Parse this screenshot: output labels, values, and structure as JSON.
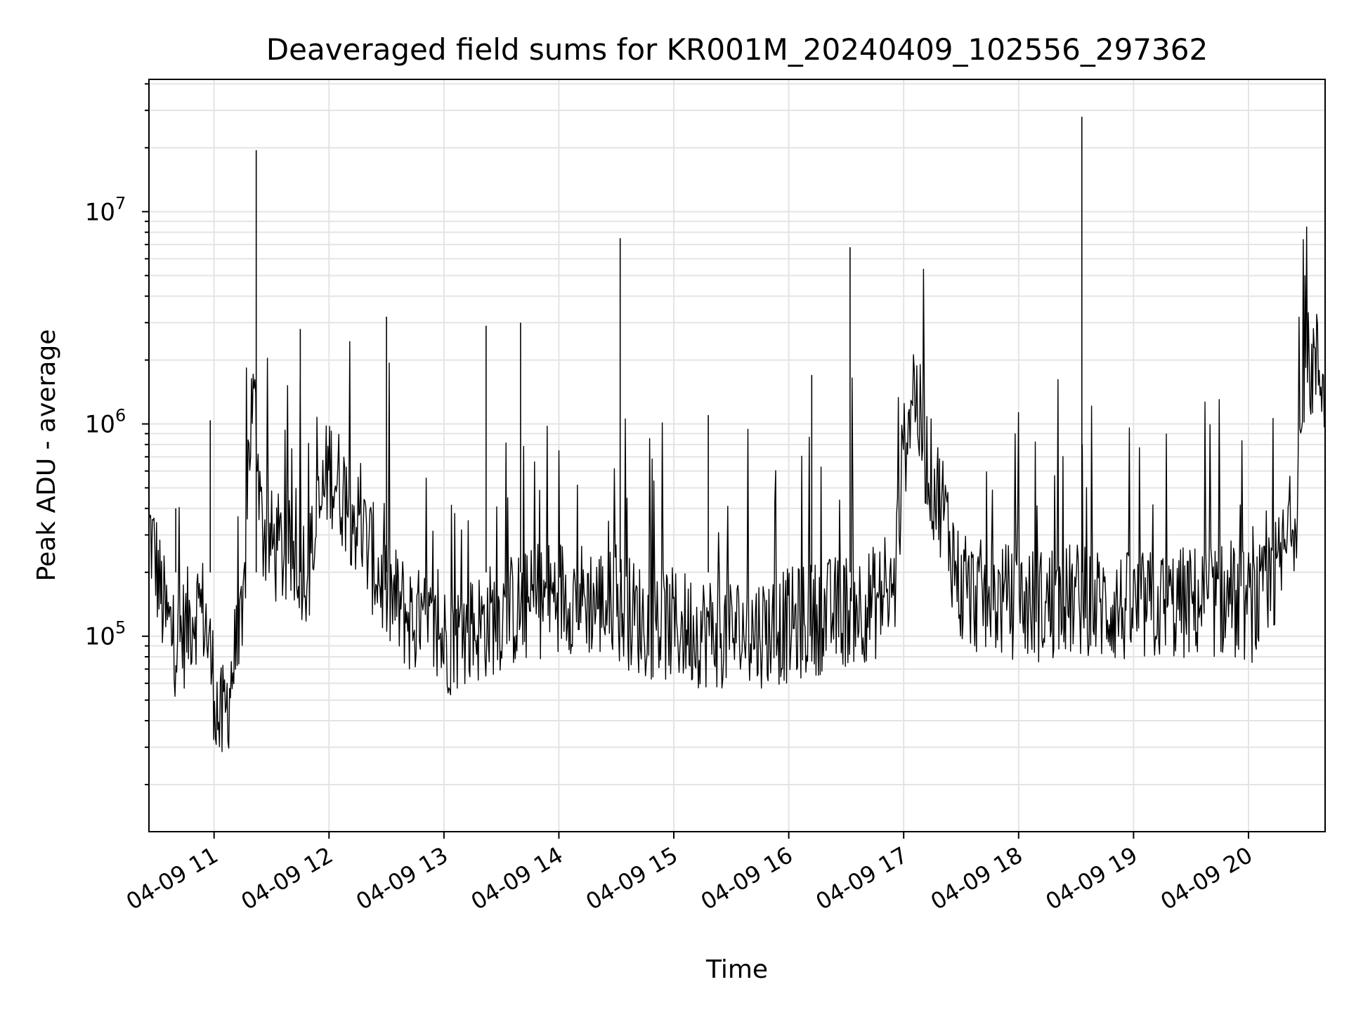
{
  "chart_data": {
    "type": "line",
    "title": "Deaveraged field sums for KR001M_20240409_102556_297362",
    "xlabel": "Time",
    "ylabel": "Peak ADU - average",
    "yscale": "log",
    "grid": true,
    "legend": "none",
    "line_color": "#000000",
    "xlim": [
      "2024-04-09 10:26",
      "2024-04-09 20:40"
    ],
    "ylim": [
      12000,
      42000000
    ],
    "x_ticks": [
      "04-09 11",
      "04-09 12",
      "04-09 13",
      "04-09 14",
      "04-09 15",
      "04-09 16",
      "04-09 17",
      "04-09 18",
      "04-09 19",
      "04-09 20"
    ],
    "y_ticks": [
      {
        "value": 100000,
        "base": "10",
        "exp": "5"
      },
      {
        "value": 1000000,
        "base": "10",
        "exp": "6"
      },
      {
        "value": 10000000,
        "base": "10",
        "exp": "7"
      }
    ],
    "series": [
      {
        "x": [
          "2024-04-09 10:26",
          "2024-04-09 10:28",
          "2024-04-09 10:30",
          "2024-04-09 10:32",
          "2024-04-09 10:35",
          "2024-04-09 10:40",
          "2024-04-09 10:45",
          "2024-04-09 10:50",
          "2024-04-09 10:55",
          "2024-04-09 11:00",
          "2024-04-09 11:03",
          "2024-04-09 11:06",
          "2024-04-09 11:10",
          "2024-04-09 11:15",
          "2024-04-09 11:18",
          "2024-04-09 11:20",
          "2024-04-09 11:22",
          "2024-04-09 11:23",
          "2024-04-09 11:25",
          "2024-04-09 11:30",
          "2024-04-09 11:40",
          "2024-04-09 11:50",
          "2024-04-09 12:00",
          "2024-04-09 12:10",
          "2024-04-09 12:20",
          "2024-04-09 12:30",
          "2024-04-09 12:40",
          "2024-04-09 12:50",
          "2024-04-09 13:00",
          "2024-04-09 13:15",
          "2024-04-09 13:30",
          "2024-04-09 13:45",
          "2024-04-09 14:00",
          "2024-04-09 14:15",
          "2024-04-09 14:30",
          "2024-04-09 14:45",
          "2024-04-09 15:00",
          "2024-04-09 15:15",
          "2024-04-09 15:30",
          "2024-04-09 15:45",
          "2024-04-09 16:00",
          "2024-04-09 16:15",
          "2024-04-09 16:30",
          "2024-04-09 16:45",
          "2024-04-09 16:55",
          "2024-04-09 17:00",
          "2024-04-09 17:05",
          "2024-04-09 17:10",
          "2024-04-09 17:15",
          "2024-04-09 17:20",
          "2024-04-09 17:30",
          "2024-04-09 17:45",
          "2024-04-09 18:00",
          "2024-04-09 18:15",
          "2024-04-09 18:30",
          "2024-04-09 18:45",
          "2024-04-09 19:00",
          "2024-04-09 19:15",
          "2024-04-09 19:30",
          "2024-04-09 19:45",
          "2024-04-09 20:00",
          "2024-04-09 20:10",
          "2024-04-09 20:20",
          "2024-04-09 20:25",
          "2024-04-09 20:30",
          "2024-04-09 20:35",
          "2024-04-09 20:40"
        ],
        "y": [
          300000,
          250000,
          200000,
          150000,
          110000,
          90000,
          100000,
          130000,
          120000,
          55000,
          35000,
          40000,
          70000,
          90000,
          700000,
          1200000,
          900000,
          700000,
          300000,
          250000,
          220000,
          200000,
          600000,
          400000,
          250000,
          150000,
          120000,
          100000,
          90000,
          100000,
          120000,
          130000,
          150000,
          140000,
          130000,
          110000,
          105000,
          100000,
          98000,
          100000,
          105000,
          115000,
          125000,
          135000,
          150000,
          700000,
          1500000,
          800000,
          500000,
          400000,
          150000,
          140000,
          135000,
          130000,
          140000,
          130000,
          125000,
          130000,
          135000,
          140000,
          130000,
          140000,
          250000,
          400000,
          1700000,
          1800000,
          1500000
        ]
      }
    ],
    "spikes": [
      {
        "x": "2024-04-09 10:40",
        "y": 400000
      },
      {
        "x": "2024-04-09 10:58",
        "y": 1040000
      },
      {
        "x": "2024-04-09 11:22",
        "y": 19500000
      },
      {
        "x": "2024-04-09 11:45",
        "y": 2800000
      },
      {
        "x": "2024-04-09 12:30",
        "y": 3200000
      },
      {
        "x": "2024-04-09 13:22",
        "y": 2900000
      },
      {
        "x": "2024-04-09 13:40",
        "y": 3000000
      },
      {
        "x": "2024-04-09 14:32",
        "y": 7500000
      },
      {
        "x": "2024-04-09 15:18",
        "y": 1100000
      },
      {
        "x": "2024-04-09 16:12",
        "y": 1700000
      },
      {
        "x": "2024-04-09 16:32",
        "y": 6800000
      },
      {
        "x": "2024-04-09 18:33",
        "y": 28000000
      }
    ]
  }
}
